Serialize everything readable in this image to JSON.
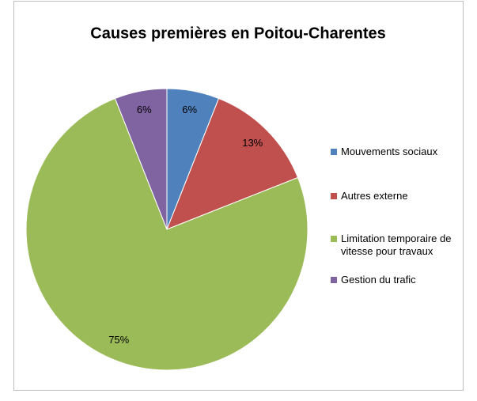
{
  "chart_data": {
    "type": "pie",
    "title": "Causes premières en Poitou-Charentes",
    "series": [
      {
        "name": "Mouvements sociaux",
        "color": "#4f81bd"
      },
      {
        "name": "Autres externe",
        "color": "#c0504d"
      },
      {
        "name": "Limitation temporaire de vitesse pour travaux",
        "color": "#9bbb59"
      },
      {
        "name": "Gestion du trafic",
        "color": "#8064a2"
      }
    ],
    "values": [
      6,
      13,
      75,
      6
    ],
    "value_labels": [
      "6%",
      "13%",
      "75%",
      "6%"
    ]
  }
}
